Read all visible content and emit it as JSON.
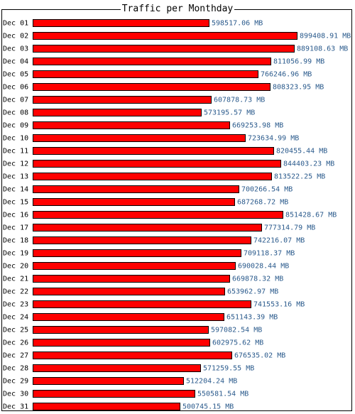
{
  "chart_data": {
    "type": "bar",
    "orientation": "horizontal",
    "title": "Traffic per Monthday",
    "unit": "MB",
    "bar_color": "#ff0000",
    "bar_border_color": "#000000",
    "value_label_color": "#2a5a8c",
    "categories": [
      "Dec 01",
      "Dec 02",
      "Dec 03",
      "Dec 04",
      "Dec 05",
      "Dec 06",
      "Dec 07",
      "Dec 08",
      "Dec 09",
      "Dec 10",
      "Dec 11",
      "Dec 12",
      "Dec 13",
      "Dec 14",
      "Dec 15",
      "Dec 16",
      "Dec 17",
      "Dec 18",
      "Dec 19",
      "Dec 20",
      "Dec 21",
      "Dec 22",
      "Dec 23",
      "Dec 24",
      "Dec 25",
      "Dec 26",
      "Dec 27",
      "Dec 28",
      "Dec 29",
      "Dec 30",
      "Dec 31"
    ],
    "values": [
      598517.06,
      899408.91,
      889108.63,
      811056.99,
      766246.96,
      808323.95,
      607878.73,
      573195.57,
      669253.98,
      723634.99,
      820455.44,
      844403.23,
      813522.25,
      700266.54,
      687268.72,
      851428.67,
      777314.79,
      742216.07,
      709118.37,
      690028.44,
      669878.32,
      653962.97,
      741553.16,
      651143.39,
      597082.54,
      602975.62,
      676535.02,
      571259.55,
      512204.24,
      550581.54,
      500745.15
    ],
    "value_labels": [
      "598517.06 MB",
      "899408.91 MB",
      "889108.63 MB",
      "811056.99 MB",
      "766246.96 MB",
      "808323.95 MB",
      "607878.73 MB",
      "573195.57 MB",
      "669253.98 MB",
      "723634.99 MB",
      "820455.44 MB",
      "844403.23 MB",
      "813522.25 MB",
      "700266.54 MB",
      "687268.72 MB",
      "851428.67 MB",
      "777314.79 MB",
      "742216.07 MB",
      "709118.37 MB",
      "690028.44 MB",
      "669878.32 MB",
      "653962.97 MB",
      "741553.16 MB",
      "651143.39 MB",
      "597082.54 MB",
      "602975.62 MB",
      "676535.02 MB",
      "571259.55 MB",
      "512204.24 MB",
      "550581.54 MB",
      "500745.15 MB"
    ]
  }
}
